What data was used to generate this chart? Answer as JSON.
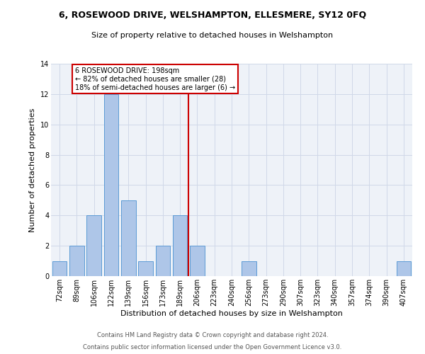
{
  "title": "6, ROSEWOOD DRIVE, WELSHAMPTON, ELLESMERE, SY12 0FQ",
  "subtitle": "Size of property relative to detached houses in Welshampton",
  "xlabel": "Distribution of detached houses by size in Welshampton",
  "ylabel": "Number of detached properties",
  "categories": [
    "72sqm",
    "89sqm",
    "106sqm",
    "122sqm",
    "139sqm",
    "156sqm",
    "173sqm",
    "189sqm",
    "206sqm",
    "223sqm",
    "240sqm",
    "256sqm",
    "273sqm",
    "290sqm",
    "307sqm",
    "323sqm",
    "340sqm",
    "357sqm",
    "374sqm",
    "390sqm",
    "407sqm"
  ],
  "values": [
    1,
    2,
    4,
    12,
    5,
    1,
    2,
    4,
    2,
    0,
    0,
    1,
    0,
    0,
    0,
    0,
    0,
    0,
    0,
    0,
    1
  ],
  "bar_color": "#aec6e8",
  "bar_edge_color": "#5b9bd5",
  "grid_color": "#d0d8e8",
  "bg_color": "#eef2f8",
  "vline_x": 7.5,
  "vline_color": "#cc0000",
  "annotation_text": "6 ROSEWOOD DRIVE: 198sqm\n← 82% of detached houses are smaller (28)\n18% of semi-detached houses are larger (6) →",
  "annotation_box_color": "#cc0000",
  "footer_line1": "Contains HM Land Registry data © Crown copyright and database right 2024.",
  "footer_line2": "Contains public sector information licensed under the Open Government Licence v3.0.",
  "ylim": [
    0,
    14
  ],
  "yticks": [
    0,
    2,
    4,
    6,
    8,
    10,
    12,
    14
  ],
  "title_fontsize": 9,
  "subtitle_fontsize": 8,
  "ylabel_fontsize": 8,
  "xlabel_fontsize": 8,
  "tick_fontsize": 7,
  "annotation_fontsize": 7,
  "footer_fontsize": 6
}
